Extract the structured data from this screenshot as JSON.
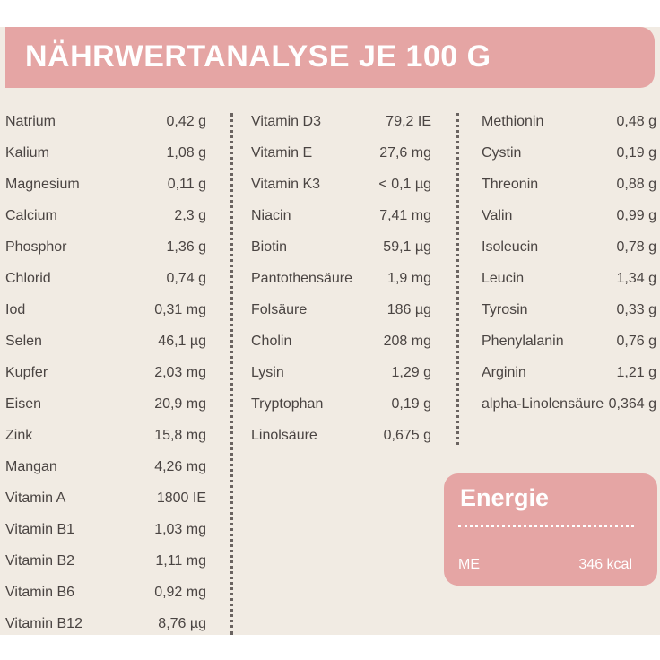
{
  "header": {
    "title": "NÄHRWERTANALYSE JE 100 G"
  },
  "columns": [
    [
      {
        "name": "Natrium",
        "value": "0,42 g"
      },
      {
        "name": "Kalium",
        "value": "1,08 g"
      },
      {
        "name": "Magnesium",
        "value": "0,11 g"
      },
      {
        "name": "Calcium",
        "value": "2,3 g"
      },
      {
        "name": "Phosphor",
        "value": "1,36 g"
      },
      {
        "name": "Chlorid",
        "value": "0,74 g"
      },
      {
        "name": "Iod",
        "value": "0,31 mg"
      },
      {
        "name": "Selen",
        "value": "46,1 µg"
      },
      {
        "name": "Kupfer",
        "value": "2,03 mg"
      },
      {
        "name": "Eisen",
        "value": "20,9 mg"
      },
      {
        "name": "Zink",
        "value": "15,8 mg"
      },
      {
        "name": "Mangan",
        "value": "4,26 mg"
      },
      {
        "name": "Vitamin A",
        "value": "1800 IE"
      },
      {
        "name": "Vitamin B1",
        "value": "1,03 mg"
      },
      {
        "name": "Vitamin B2",
        "value": "1,11 mg"
      },
      {
        "name": "Vitamin B6",
        "value": "0,92 mg"
      },
      {
        "name": "Vitamin B12",
        "value": "8,76 µg"
      }
    ],
    [
      {
        "name": "Vitamin D3",
        "value": "79,2 IE"
      },
      {
        "name": "Vitamin E",
        "value": "27,6 mg"
      },
      {
        "name": "Vitamin K3",
        "value": "< 0,1 µg"
      },
      {
        "name": "Niacin",
        "value": "7,41 mg"
      },
      {
        "name": "Biotin",
        "value": "59,1 µg"
      },
      {
        "name": "Pantothensäure",
        "value": "1,9 mg"
      },
      {
        "name": "Folsäure",
        "value": "186 µg"
      },
      {
        "name": "Cholin",
        "value": "208 mg"
      },
      {
        "name": "Lysin",
        "value": "1,29 g"
      },
      {
        "name": "Tryptophan",
        "value": "0,19 g"
      },
      {
        "name": "Linolsäure",
        "value": "0,675 g"
      }
    ],
    [
      {
        "name": "Methionin",
        "value": "0,48 g"
      },
      {
        "name": "Cystin",
        "value": "0,19 g"
      },
      {
        "name": "Threonin",
        "value": "0,88 g"
      },
      {
        "name": "Valin",
        "value": "0,99 g"
      },
      {
        "name": "Isoleucin",
        "value": "0,78 g"
      },
      {
        "name": "Leucin",
        "value": "1,34 g"
      },
      {
        "name": "Tyrosin",
        "value": "0,33 g"
      },
      {
        "name": "Phenylalanin",
        "value": "0,76 g"
      },
      {
        "name": "Arginin",
        "value": "1,21 g"
      },
      {
        "name": "alpha-Linolensäure",
        "value": "0,364 g"
      }
    ]
  ],
  "energy": {
    "title": "Energie",
    "label": "ME",
    "value": "346 kcal"
  },
  "colors": {
    "accent": "#e5a5a4",
    "background": "#f1ebe3",
    "text": "#4a4442"
  }
}
